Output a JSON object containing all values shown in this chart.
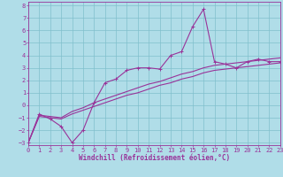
{
  "xlabel": "Windchill (Refroidissement éolien,°C)",
  "background_color": "#b0dde8",
  "grid_color": "#80bfcc",
  "line_color": "#993399",
  "xlim": [
    0,
    23
  ],
  "ylim": [
    -3.2,
    8.3
  ],
  "xticks": [
    0,
    1,
    2,
    3,
    4,
    5,
    6,
    7,
    8,
    9,
    10,
    11,
    12,
    13,
    14,
    15,
    16,
    17,
    18,
    19,
    20,
    21,
    22,
    23
  ],
  "yticks": [
    -3,
    -2,
    -1,
    0,
    1,
    2,
    3,
    4,
    5,
    6,
    7,
    8
  ],
  "curve1_x": [
    0,
    1,
    2,
    3,
    4,
    5,
    6,
    7,
    8,
    9,
    10,
    11,
    12,
    13,
    14,
    15,
    16,
    17,
    18,
    19,
    20,
    21,
    22,
    23
  ],
  "curve1_y": [
    -3.0,
    -0.7,
    -1.1,
    -1.7,
    -3.0,
    -2.0,
    0.2,
    1.8,
    2.1,
    2.8,
    3.0,
    3.0,
    2.9,
    4.0,
    4.3,
    6.3,
    7.7,
    3.5,
    3.3,
    3.0,
    3.5,
    3.7,
    3.5,
    3.5
  ],
  "curve2_x": [
    0,
    1,
    2,
    3,
    4,
    5,
    6,
    7,
    8,
    9,
    10,
    11,
    12,
    13,
    14,
    15,
    16,
    17,
    18,
    19,
    20,
    21,
    22,
    23
  ],
  "curve2_y": [
    -3.0,
    -0.9,
    -1.0,
    -1.1,
    -0.7,
    -0.4,
    -0.1,
    0.2,
    0.5,
    0.8,
    1.0,
    1.3,
    1.6,
    1.8,
    2.1,
    2.3,
    2.6,
    2.8,
    2.9,
    3.0,
    3.1,
    3.2,
    3.3,
    3.4
  ],
  "curve3_x": [
    0,
    1,
    2,
    3,
    4,
    5,
    6,
    7,
    8,
    9,
    10,
    11,
    12,
    13,
    14,
    15,
    16,
    17,
    18,
    19,
    20,
    21,
    22,
    23
  ],
  "curve3_y": [
    -3.0,
    -0.8,
    -0.9,
    -1.0,
    -0.5,
    -0.2,
    0.2,
    0.5,
    0.8,
    1.1,
    1.4,
    1.7,
    1.9,
    2.2,
    2.5,
    2.7,
    3.0,
    3.2,
    3.3,
    3.4,
    3.5,
    3.6,
    3.7,
    3.8
  ],
  "tick_fontsize": 5.0,
  "label_fontsize": 5.5,
  "lw": 0.8
}
